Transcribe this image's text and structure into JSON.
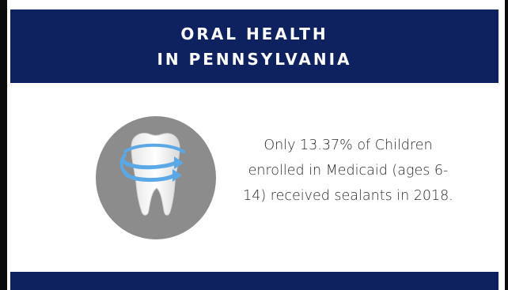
{
  "header": {
    "title_line_1": "ORAL HEALTH",
    "title_line_2": "IN PENNSYLVANIA"
  },
  "statement": {
    "line_1": "Only 13.37% of Children",
    "line_2": "enrolled in Medicaid (ages 6-",
    "line_3": "14) received sealants in 2018."
  },
  "icon": "tooth-with-sealant-arrows-icon",
  "colors": {
    "header_bg": "#0f2260",
    "circle_bg": "#8a8a8a",
    "tooth": "#ffffff",
    "arrows": "#5aa8e6"
  }
}
